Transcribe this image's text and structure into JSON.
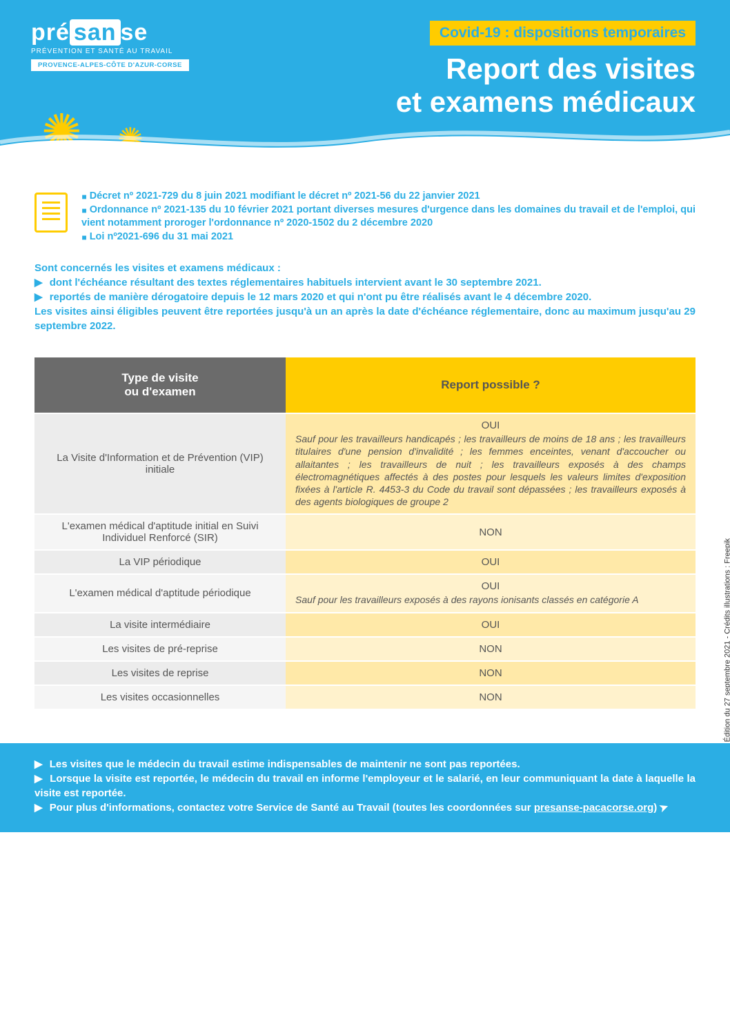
{
  "logo": {
    "pre": "pré",
    "san": "san",
    "se": "se",
    "sub": "PRÉVENTION ET SANTÉ AU TRAVAIL",
    "region": "PROVENCE-ALPES-CÔTE D'AZUR-CORSE"
  },
  "header": {
    "badge": "Covid-19 : dispositions temporaires",
    "title_line1": "Report des visites",
    "title_line2": "et examens médicaux"
  },
  "decrets": [
    "Décret nº 2021-729 du 8 juin 2021 modifiant le décret nº 2021-56 du 22 janvier 2021",
    "Ordonnance nº 2021-135 du 10 février 2021 portant diverses mesures d'urgence dans les domaines du travail et de l'emploi, qui vient notamment proroger l'ordonnance nº 2020-1502 du 2 décembre 2020",
    "Loi nº2021-696 du 31 mai 2021"
  ],
  "intro": {
    "lead": "Sont concernés les visites et examens médicaux :",
    "b1": "dont l'échéance résultant des textes réglementaires habituels intervient avant le 30 septembre 2021.",
    "b2": "reportés de manière dérogatoire depuis le 12 mars 2020 et qui n'ont pu être réalisés avant le 4 décembre 2020.",
    "tail": "Les visites ainsi éligibles peuvent être reportées jusqu'à un an après la date d'échéance réglementaire, donc au maximum jusqu'au 29 septembre 2022."
  },
  "table": {
    "head_col1": "Type de visite\nou d'examen",
    "head_col2": "Report possible ?",
    "rows": [
      {
        "type": "La Visite d'Information et de Prévention (VIP) initiale",
        "answer": "OUI",
        "note": "Sauf pour les travailleurs handicapés ; les travailleurs de moins de 18 ans ; les travailleurs titulaires d'une pension d'invalidité ; les femmes enceintes, venant d'accoucher ou allaitantes ; les travailleurs de nuit ; les travailleurs exposés à des champs électromagnétiques affectés à des postes pour lesquels les valeurs limites d'exposition fixées à l'article R. 4453-3 du Code du travail sont dépassées ; les travailleurs exposés à des agents biologiques de groupe 2"
      },
      {
        "type": "L'examen médical d'aptitude initial en Suivi Individuel Renforcé (SIR)",
        "answer": "NON",
        "note": ""
      },
      {
        "type": "La VIP périodique",
        "answer": "OUI",
        "note": ""
      },
      {
        "type": "L'examen médical d'aptitude périodique",
        "answer": "OUI",
        "note": "Sauf pour les travailleurs exposés à des rayons ionisants classés en catégorie A"
      },
      {
        "type": "La visite intermédiaire",
        "answer": "OUI",
        "note": ""
      },
      {
        "type": "Les visites de pré-reprise",
        "answer": "NON",
        "note": ""
      },
      {
        "type": "Les visites de reprise",
        "answer": "NON",
        "note": ""
      },
      {
        "type": "Les visites occasionnelles",
        "answer": "NON",
        "note": ""
      }
    ]
  },
  "footer": {
    "b1": "Les visites que le médecin du travail estime indispensables de maintenir ne sont pas reportées.",
    "b2": "Lorsque la visite est reportée, le médecin du travail en informe l'employeur et le salarié, en leur communiquant la date à laquelle la visite est reportée.",
    "b3_pre": "Pour plus d'informations, contactez votre Service de Santé au Travail (toutes les coordonnées sur ",
    "b3_link": "presanse-pacacorse.org",
    "b3_post": ")"
  },
  "side_credit": "Édition du 27 septembre 2021 - Crédits illustrations : Freepik",
  "colors": {
    "primary": "#2baee4",
    "accent": "#ffcc00",
    "grey_header": "#6b6b6b",
    "row_grey_a": "#ececec",
    "row_grey_b": "#f5f5f5",
    "row_yel_a": "#ffe9a8",
    "row_yel_b": "#fff2cc"
  }
}
